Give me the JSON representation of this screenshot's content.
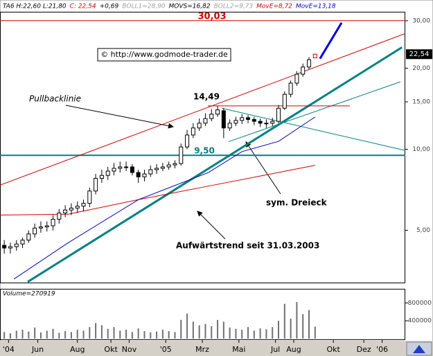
{
  "header": [
    {
      "text": "TA6 H:22,60 L:21,80",
      "color": "#000000"
    },
    {
      "text": "C: 22,54",
      "color": "#d00000"
    },
    {
      "text": "+0,69",
      "color": "#000000"
    },
    {
      "text": "BOLL1=28,90",
      "color": "#a0a0a0"
    },
    {
      "text": "MOVS=16,82",
      "color": "#000000"
    },
    {
      "text": "BOLL2=9,73",
      "color": "#a0a0a0"
    },
    {
      "text": "MovE=8,72",
      "color": "#d00000"
    },
    {
      "text": "MovE=13,18",
      "color": "#0000c0"
    }
  ],
  "watermark": "© http://www.godmode-trader.de",
  "chart_data": [
    {
      "type": "candlestick",
      "log_scale": true,
      "x": [
        0,
        2,
        4,
        6,
        8,
        10,
        12,
        14,
        16,
        18,
        20,
        22,
        24,
        26,
        28,
        30,
        32,
        34,
        36,
        38,
        40,
        42,
        44,
        46,
        48,
        50,
        52,
        54,
        56,
        58,
        60,
        62,
        64,
        66,
        68,
        70,
        72,
        74,
        76,
        78,
        80,
        82,
        84,
        86,
        88,
        90,
        92,
        94,
        96,
        98,
        100,
        102
      ],
      "open": [
        4.4,
        4.3,
        4.35,
        4.45,
        4.6,
        4.85,
        5.1,
        5.15,
        5.2,
        5.5,
        5.8,
        5.95,
        6.05,
        6.15,
        6.3,
        7.0,
        7.8,
        8.0,
        8.3,
        8.5,
        8.6,
        8.6,
        8.2,
        7.9,
        8.1,
        8.4,
        8.5,
        8.6,
        8.75,
        8.85,
        10.2,
        11.3,
        12.0,
        12.5,
        13.0,
        13.5,
        13.9,
        12.0,
        12.5,
        12.8,
        13.1,
        12.9,
        12.7,
        12.5,
        12.5,
        12.7,
        14.2,
        16.0,
        17.6,
        19.0,
        20.2,
        21.85
      ],
      "high": [
        4.6,
        4.5,
        4.6,
        4.7,
        5.0,
        5.3,
        5.4,
        5.4,
        5.7,
        6.0,
        6.2,
        6.3,
        6.4,
        6.5,
        7.2,
        8.1,
        8.4,
        8.6,
        8.9,
        9.0,
        9.0,
        8.8,
        8.4,
        8.4,
        8.7,
        8.8,
        8.9,
        9.0,
        9.1,
        10.5,
        11.8,
        12.5,
        13.0,
        13.6,
        14.1,
        14.49,
        14.2,
        12.9,
        13.2,
        13.5,
        13.4,
        13.2,
        13.0,
        12.9,
        13.1,
        14.6,
        16.4,
        18.0,
        19.5,
        20.8,
        22.0,
        22.6
      ],
      "low": [
        4.1,
        4.1,
        4.2,
        4.3,
        4.5,
        4.7,
        4.9,
        4.95,
        5.0,
        5.3,
        5.6,
        5.7,
        5.8,
        5.9,
        6.1,
        6.8,
        7.5,
        7.7,
        8.0,
        8.2,
        8.3,
        8.0,
        7.5,
        7.6,
        7.9,
        8.1,
        8.3,
        8.4,
        8.5,
        8.7,
        10.0,
        11.0,
        11.7,
        12.2,
        12.7,
        13.2,
        11.0,
        11.7,
        12.2,
        12.4,
        12.5,
        12.3,
        12.1,
        12.0,
        12.2,
        12.5,
        14.0,
        15.6,
        17.2,
        18.6,
        19.8,
        21.8
      ],
      "close": [
        4.3,
        4.35,
        4.45,
        4.6,
        4.85,
        5.1,
        5.15,
        5.2,
        5.5,
        5.8,
        5.95,
        6.05,
        6.15,
        6.3,
        7.0,
        7.8,
        8.0,
        8.3,
        8.5,
        8.6,
        8.6,
        8.2,
        7.9,
        8.1,
        8.4,
        8.5,
        8.6,
        8.75,
        8.85,
        10.2,
        11.3,
        12.0,
        12.5,
        13.0,
        13.5,
        14.0,
        12.0,
        12.5,
        12.8,
        13.1,
        12.9,
        12.7,
        12.5,
        12.5,
        12.7,
        14.2,
        16.0,
        17.6,
        19.0,
        20.2,
        21.5,
        22.54
      ],
      "last_label": {
        "value": 22.54,
        "label": "22,54"
      },
      "xlim": [
        -1.4,
        131.6
      ],
      "xticks": [
        {
          "value": 1.4,
          "label": "'04"
        },
        {
          "value": 11,
          "label": "Jun"
        },
        {
          "value": 24,
          "label": "Aug"
        },
        {
          "value": 35,
          "label": "Okt"
        },
        {
          "value": 41,
          "label": "Nov"
        },
        {
          "value": 53,
          "label": "'05"
        },
        {
          "value": 65,
          "label": "Mrz"
        },
        {
          "value": 77,
          "label": "Mai"
        },
        {
          "value": 89,
          "label": "Jul"
        },
        {
          "value": 95,
          "label": "Aug"
        },
        {
          "value": 108,
          "label": "Okt"
        },
        {
          "value": 118,
          "label": "Dez"
        },
        {
          "value": 124,
          "label": "'06"
        }
      ],
      "ylim": [
        3.2,
        32.2
      ],
      "yticks": [
        {
          "value": 5,
          "label": "5,00"
        },
        {
          "value": 10,
          "label": "10,00"
        },
        {
          "value": 15,
          "label": "15,00"
        },
        {
          "value": 20,
          "label": "20,00"
        },
        {
          "value": 30,
          "label": "30,00"
        }
      ],
      "series": [
        {
          "color": "#d00000",
          "x": [
            -1.4,
            21,
            44,
            67,
            90,
            102
          ],
          "values": [
            5.7,
            5.74,
            6.5,
            7.3,
            8.2,
            8.72
          ]
        },
        {
          "color": "#0000c0",
          "x": [
            3.2,
            21,
            44,
            67,
            78,
            90,
            102
          ],
          "values": [
            3.3,
            4.5,
            6.5,
            8.2,
            9.8,
            10.7,
            13.18
          ]
        }
      ],
      "trendlines": [
        {
          "color": "#d00000",
          "x": [
            -1.4,
            131.6
          ],
          "values": [
            30.03,
            30.03
          ],
          "label": "30,03"
        },
        {
          "color": "#008080",
          "x": [
            -1.4,
            131.6
          ],
          "values": [
            9.5,
            9.5
          ],
          "label": "9,50"
        },
        {
          "color": "#d00000",
          "x": [
            -1.4,
            131.6
          ],
          "values": [
            7.36,
            26.9
          ]
        },
        {
          "color": "#008080",
          "x": [
            7.7,
            130.5
          ],
          "values": [
            3.22,
            23.9
          ]
        },
        {
          "color": "#008080",
          "x": [
            73.6,
            130
          ],
          "values": [
            10.67,
            17.8
          ]
        },
        {
          "color": "#008080",
          "x": [
            71.4,
            131.6
          ],
          "values": [
            14.2,
            9.9
          ]
        },
        {
          "color": "#d00000",
          "x": [
            66.8,
            113.4
          ],
          "values": [
            14.49,
            14.49
          ],
          "label": "14,49"
        },
        {
          "color": "#0000e0",
          "x": [
            103.6,
            110.7
          ],
          "values": [
            21.7,
            29.5
          ]
        }
      ],
      "annotations": [
        "Pullbacklinie",
        "sym. Dreieck",
        "Aufwärtstrend seit 31.03.2003"
      ]
    },
    {
      "type": "bar",
      "title": "Volume=270919",
      "color": "#707070",
      "x": [
        0,
        2,
        4,
        6,
        8,
        10,
        12,
        14,
        16,
        18,
        20,
        22,
        24,
        26,
        28,
        30,
        32,
        34,
        36,
        38,
        40,
        42,
        44,
        46,
        48,
        50,
        52,
        54,
        56,
        58,
        60,
        62,
        64,
        66,
        68,
        70,
        72,
        74,
        76,
        78,
        80,
        82,
        84,
        86,
        88,
        90,
        92,
        94,
        96,
        98,
        100,
        102
      ],
      "values": [
        150000,
        120000,
        180000,
        200000,
        160000,
        250000,
        140000,
        180000,
        220000,
        130000,
        170000,
        150000,
        200000,
        180000,
        260000,
        350000,
        300000,
        220000,
        260000,
        180000,
        200000,
        150000,
        230000,
        170000,
        140000,
        160000,
        200000,
        170000,
        150000,
        420000,
        560000,
        380000,
        300000,
        330000,
        280000,
        420000,
        380000,
        250000,
        220000,
        200000,
        260000,
        180000,
        230000,
        210000,
        260000,
        400000,
        780000,
        450000,
        820000,
        550000,
        640000,
        270919
      ],
      "xlim": [
        -1.4,
        131.6
      ],
      "ylim": [
        0,
        1100000
      ],
      "yticks": [
        400000,
        800000
      ]
    }
  ]
}
